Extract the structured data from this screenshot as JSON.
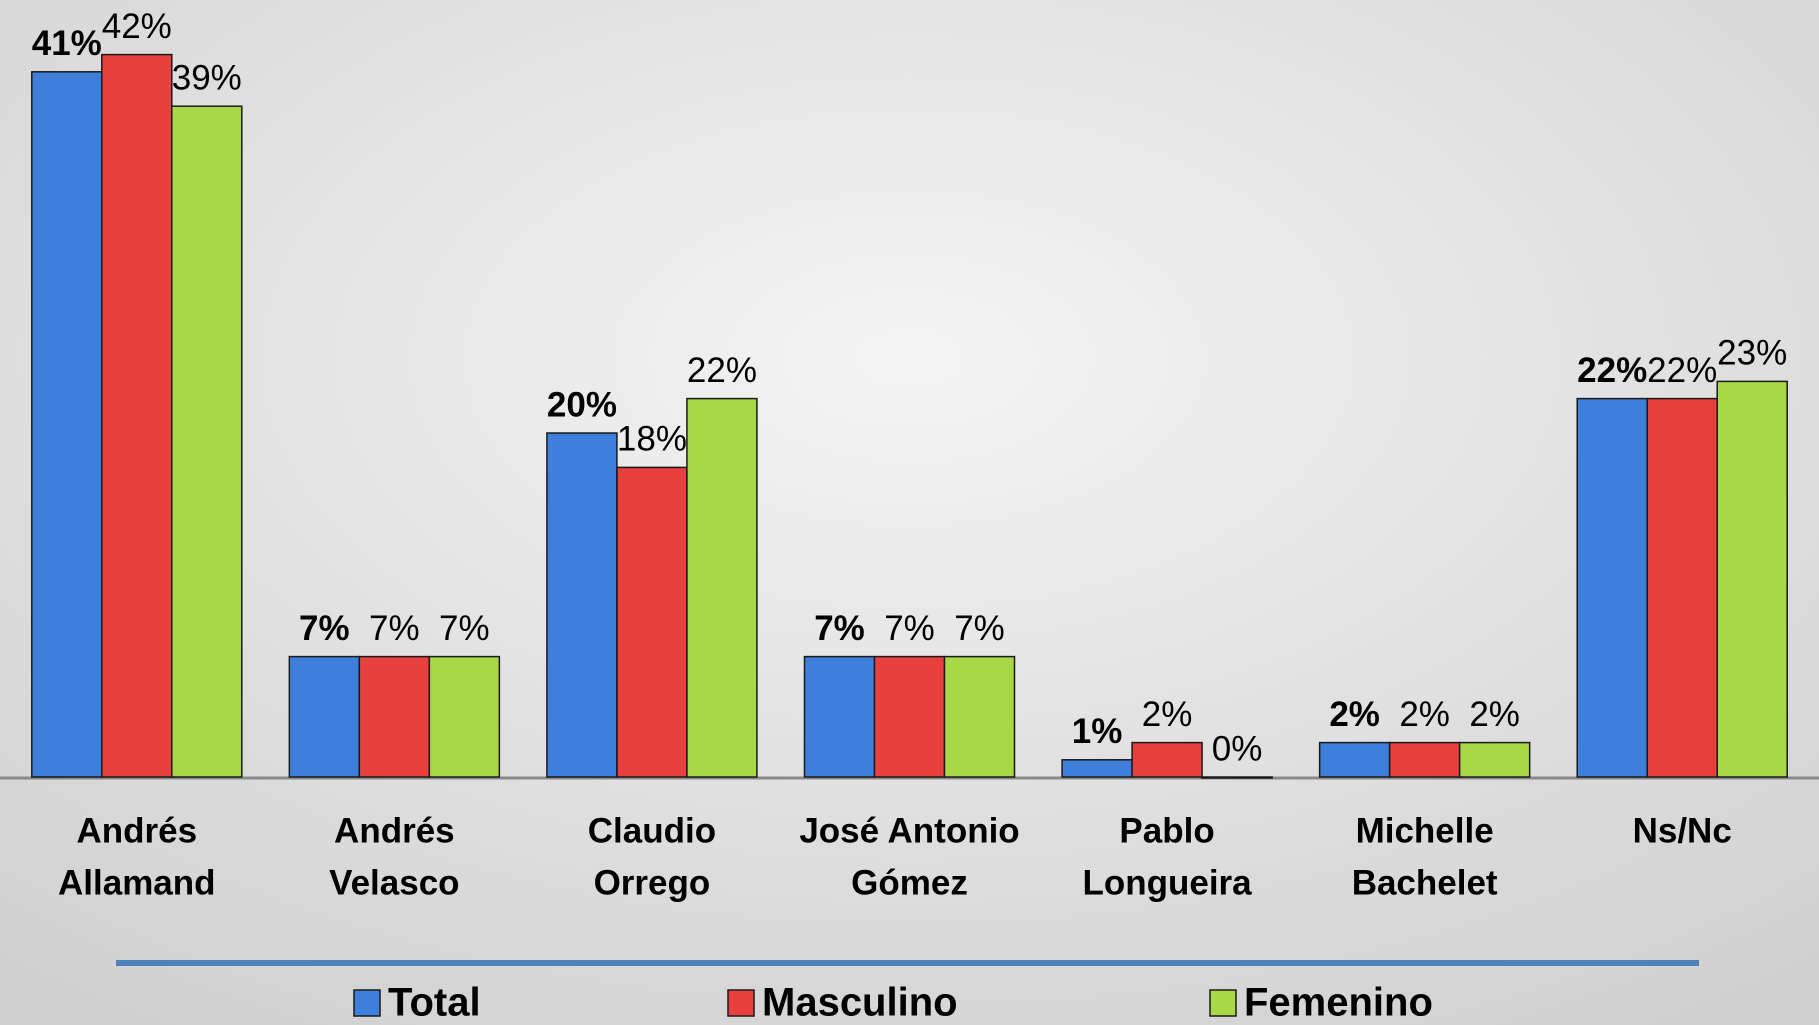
{
  "chart_data": {
    "type": "bar",
    "categories": [
      [
        "Andrés",
        "Allamand"
      ],
      [
        "Andrés",
        "Velasco"
      ],
      [
        "Claudio",
        "Orrego"
      ],
      [
        "José Antonio",
        "Gómez"
      ],
      [
        "Pablo",
        "Longueira"
      ],
      [
        "Michelle",
        "Bachelet"
      ],
      [
        "Ns/Nc"
      ]
    ],
    "series": [
      {
        "name": "Total",
        "color": "#3f7fdc",
        "values": [
          41,
          7,
          20,
          7,
          1,
          2,
          22
        ],
        "value_labels": [
          "41%",
          "7%",
          "20%",
          "7%",
          "1%",
          "2%",
          "22%"
        ]
      },
      {
        "name": "Masculino",
        "color": "#e8403f",
        "values": [
          42,
          7,
          18,
          7,
          2,
          2,
          22
        ],
        "value_labels": [
          "42%",
          "7%",
          "18%",
          "7%",
          "2%",
          "2%",
          "22%"
        ]
      },
      {
        "name": "Femenino",
        "color": "#a9d846",
        "values": [
          39,
          7,
          22,
          7,
          0,
          2,
          23
        ],
        "value_labels": [
          "39%",
          "7%",
          "22%",
          "7%",
          "0%",
          "2%",
          "23%"
        ]
      }
    ],
    "ylim": [
      0,
      45
    ],
    "legend": "bottom"
  }
}
